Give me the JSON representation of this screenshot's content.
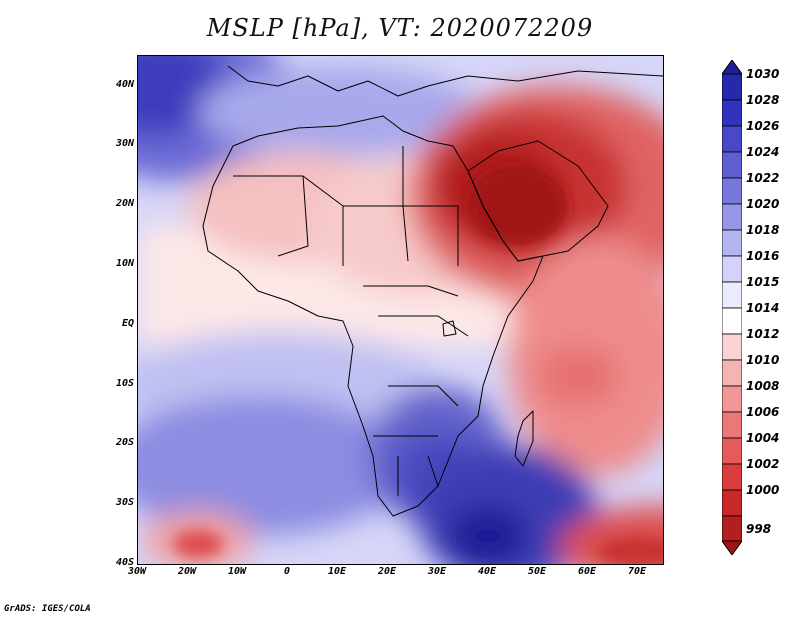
{
  "title": "MSLP [hPa], VT: 2020072209",
  "credit": "GrADS: IGES/COLA",
  "axes": {
    "lat_labels": [
      "40N",
      "30N",
      "20N",
      "10N",
      "EQ",
      "10S",
      "20S",
      "30S",
      "40S"
    ],
    "lon_labels": [
      "30W",
      "20W",
      "10W",
      "0",
      "10E",
      "20E",
      "30E",
      "40E",
      "50E",
      "60E",
      "70E"
    ]
  },
  "colorbar": {
    "levels": [
      "1030",
      "1028",
      "1026",
      "1024",
      "1022",
      "1020",
      "1018",
      "1016",
      "1015",
      "1014",
      "1012",
      "1010",
      "1008",
      "1006",
      "1004",
      "1002",
      "1000",
      "998"
    ],
    "colors": [
      "#1e1e96",
      "#2828aa",
      "#3232be",
      "#4848c8",
      "#5f5fd2",
      "#7878dc",
      "#9696e6",
      "#b4b4f0",
      "#d2d2fa",
      "#ffffff",
      "#fad2d2",
      "#f5b4b4",
      "#f09696",
      "#eb7878",
      "#e65a5a",
      "#dc3c3c",
      "#c82828",
      "#a01414"
    ]
  }
}
